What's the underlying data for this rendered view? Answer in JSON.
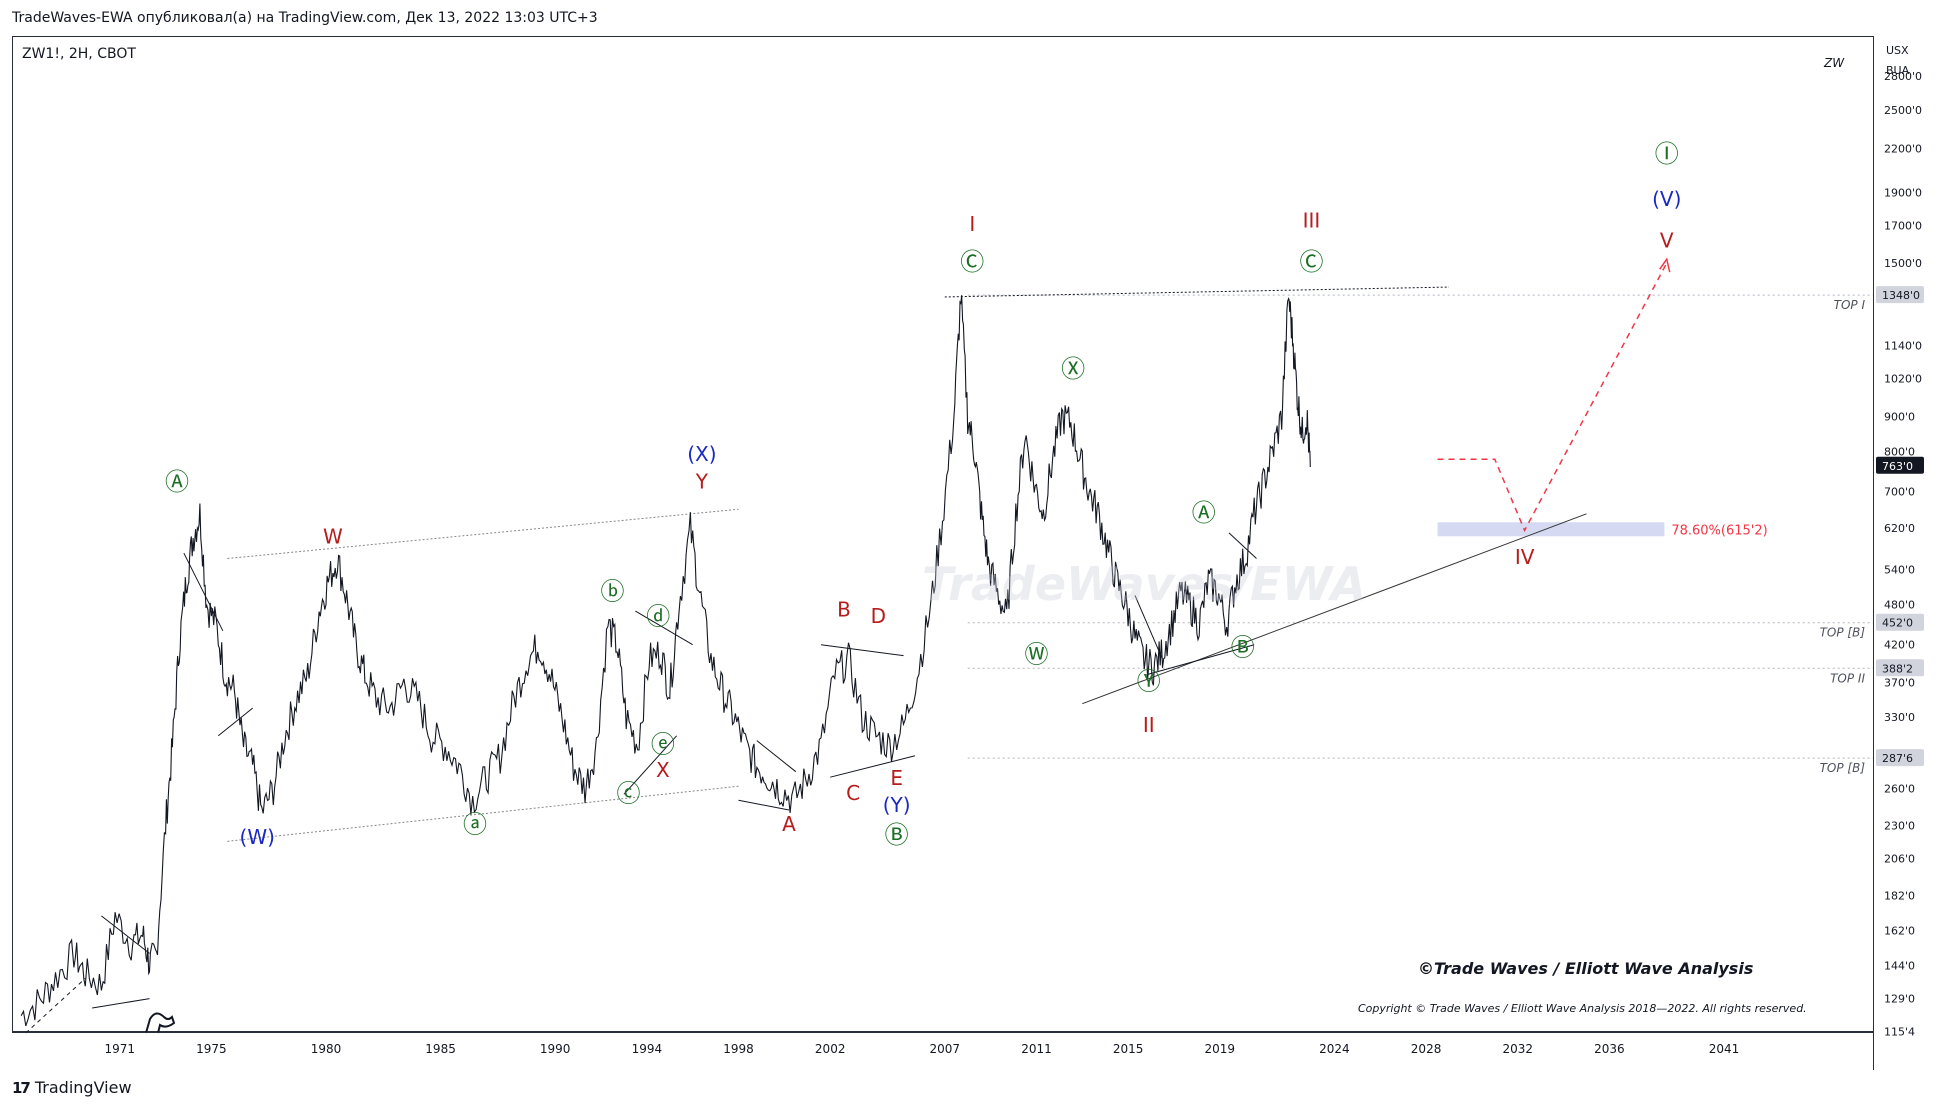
{
  "header": {
    "publish_line": "TradeWaves-EWA опубликовал(а) на TradingView.com, Дек 13, 2022 13:03 UTC+3"
  },
  "symbol": {
    "title": "ZW1!, 2H, CBOT",
    "watermark_code": "ZW",
    "currency_line1": "USX",
    "currency_line2": "BUA"
  },
  "footer": {
    "brand": "TradingView"
  },
  "chart_data": {
    "type": "line",
    "title": "ZW1!, 2H, CBOT",
    "y_scale": "log",
    "ylim": [
      115.4,
      3200
    ],
    "xlim": [
      1966.3,
      2047.5
    ],
    "x_ticks": [
      "1971",
      "1975",
      "1980",
      "1985",
      "1990",
      "1994",
      "1998",
      "2002",
      "2007",
      "2011",
      "2015",
      "2019",
      "2024",
      "2028",
      "2032",
      "2036",
      "2041"
    ],
    "y_ticks": [
      "2800'0",
      "2500'0",
      "2200'0",
      "1900'0",
      "1700'0",
      "1500'0",
      "1140'0",
      "1020'0",
      "900'0",
      "800'0",
      "700'0",
      "620'0",
      "540'0",
      "480'0",
      "420'0",
      "370'0",
      "330'0",
      "260'0",
      "230'0",
      "206'0",
      "182'0",
      "162'0",
      "144'0",
      "129'0",
      "115'4"
    ],
    "price_tags": [
      {
        "label": "1348'0",
        "value": 1348,
        "color": "#d1d4dc",
        "text_color": "#131722"
      },
      {
        "label": "763'0",
        "value": 763,
        "color": "#131722",
        "text_color": "#ffffff"
      },
      {
        "label": "452'0",
        "value": 452,
        "color": "#d1d4dc",
        "text_color": "#131722"
      },
      {
        "label": "388'2",
        "value": 388.25,
        "color": "#d1d4dc",
        "text_color": "#131722"
      },
      {
        "label": "287'6",
        "value": 287.75,
        "color": "#d1d4dc",
        "text_color": "#131722"
      }
    ],
    "horizontal_levels": [
      {
        "label": "TOP I",
        "value": 1348
      },
      {
        "label": "TOP [B]",
        "value": 452
      },
      {
        "label": "TOP II",
        "value": 388.25
      },
      {
        "label": "TOP [B]",
        "value": 287.75
      }
    ],
    "fib_zone": {
      "label": "78.60%(615'2)",
      "value": 615.25,
      "color": "#f23645"
    },
    "series": [
      {
        "name": "ZW1! price",
        "x": [
          1966.7,
          1967.5,
          1968.2,
          1969.0,
          1969.5,
          1970.2,
          1970.8,
          1971.5,
          1972.0,
          1972.3,
          1972.6,
          1973.0,
          1973.3,
          1973.6,
          1973.9,
          1974.2,
          1974.5,
          1974.8,
          1975.2,
          1975.6,
          1976.0,
          1976.4,
          1976.8,
          1977.2,
          1977.7,
          1978.2,
          1978.7,
          1979.2,
          1979.7,
          1980.1,
          1980.5,
          1980.9,
          1981.3,
          1981.7,
          1982.2,
          1982.8,
          1983.4,
          1984.0,
          1984.6,
          1985.2,
          1985.8,
          1986.4,
          1987.0,
          1987.6,
          1988.2,
          1988.8,
          1989.3,
          1989.8,
          1990.3,
          1990.8,
          1991.3,
          1991.8,
          1992.3,
          1992.7,
          1993.1,
          1993.6,
          1994.1,
          1994.6,
          1995.0,
          1995.4,
          1995.9,
          1996.3,
          1996.8,
          1997.3,
          1997.8,
          1998.3,
          1998.8,
          1999.3,
          1999.8,
          2000.4,
          2001.0,
          2001.6,
          2002.2,
          2002.8,
          2003.4,
          2004.0,
          2004.6,
          2005.2,
          2005.8,
          2006.4,
          2006.9,
          2007.4,
          2007.7,
          2008.0,
          2008.3,
          2008.6,
          2008.9,
          2009.3,
          2009.7,
          2010.1,
          2010.5,
          2010.9,
          2011.3,
          2011.7,
          2012.1,
          2012.5,
          2012.9,
          2013.3,
          2013.7,
          2014.1,
          2014.5,
          2014.9,
          2015.3,
          2015.7,
          2016.1,
          2016.5,
          2016.9,
          2017.3,
          2017.7,
          2018.1,
          2018.5,
          2018.9,
          2019.3,
          2019.7,
          2020.1,
          2020.5,
          2020.9,
          2021.3,
          2021.7,
          2022.0,
          2022.2,
          2022.4,
          2022.6,
          2022.8,
          2022.95
        ],
        "values": [
          122,
          128,
          138,
          150,
          140,
          135,
          170,
          155,
          160,
          145,
          150,
          230,
          300,
          420,
          520,
          600,
          650,
          480,
          450,
          380,
          360,
          300,
          280,
          240,
          260,
          310,
          350,
          380,
          470,
          520,
          560,
          490,
          420,
          380,
          350,
          340,
          370,
          350,
          310,
          300,
          280,
          250,
          270,
          290,
          350,
          400,
          420,
          380,
          330,
          280,
          260,
          300,
          450,
          420,
          330,
          300,
          400,
          410,
          360,
          480,
          620,
          500,
          400,
          360,
          330,
          300,
          280,
          270,
          260,
          250,
          270,
          300,
          380,
          400,
          330,
          310,
          300,
          320,
          380,
          480,
          640,
          900,
          1348,
          900,
          800,
          650,
          550,
          500,
          460,
          650,
          850,
          720,
          650,
          780,
          900,
          880,
          780,
          700,
          650,
          580,
          520,
          480,
          430,
          400,
          390,
          410,
          450,
          500,
          480,
          450,
          520,
          500,
          450,
          520,
          560,
          650,
          720,
          800,
          900,
          1348,
          1150,
          950,
          850,
          900,
          760
        ]
      },
      {
        "name": "Projection",
        "x": [
          2028.5,
          2031.0,
          2032.3,
          2038.5
        ],
        "values": [
          780,
          780,
          615,
          1500
        ]
      }
    ],
    "annotations": [
      {
        "text": "Ⓐ",
        "x": 1973.5,
        "value": 720,
        "color": "#1b6f24"
      },
      {
        "text": "W",
        "x": 1980.3,
        "value": 600,
        "color": "#b71c1c"
      },
      {
        "text": "(W)",
        "x": 1977.0,
        "value": 220,
        "color": "#1a28c4"
      },
      {
        "text": "ⓐ",
        "x": 1986.5,
        "value": 230,
        "color": "#1b6f24"
      },
      {
        "text": "ⓑ",
        "x": 1992.5,
        "value": 500,
        "color": "#1b6f24"
      },
      {
        "text": "ⓒ",
        "x": 1993.2,
        "value": 255,
        "color": "#1b6f24"
      },
      {
        "text": "ⓓ",
        "x": 1994.5,
        "value": 460,
        "color": "#1b6f24"
      },
      {
        "text": "ⓔ",
        "x": 1994.7,
        "value": 300,
        "color": "#1b6f24"
      },
      {
        "text": "X",
        "x": 1994.7,
        "value": 275,
        "color": "#b71c1c"
      },
      {
        "text": "(X)",
        "x": 1996.4,
        "value": 790,
        "color": "#1a28c4"
      },
      {
        "text": "Y",
        "x": 1996.4,
        "value": 720,
        "color": "#b71c1c"
      },
      {
        "text": "A",
        "x": 2000.2,
        "value": 230,
        "color": "#b71c1c"
      },
      {
        "text": "B",
        "x": 2002.6,
        "value": 470,
        "color": "#b71c1c"
      },
      {
        "text": "C",
        "x": 2003.0,
        "value": 255,
        "color": "#b71c1c"
      },
      {
        "text": "D",
        "x": 2004.1,
        "value": 460,
        "color": "#b71c1c"
      },
      {
        "text": "E",
        "x": 2004.9,
        "value": 268,
        "color": "#b71c1c"
      },
      {
        "text": "(Y)",
        "x": 2004.9,
        "value": 245,
        "color": "#1a28c4"
      },
      {
        "text": "Ⓑ",
        "x": 2004.9,
        "value": 222,
        "color": "#1b6f24"
      },
      {
        "text": "I",
        "x": 2008.2,
        "value": 1700,
        "color": "#b71c1c"
      },
      {
        "text": "Ⓒ",
        "x": 2008.2,
        "value": 1500,
        "color": "#1b6f24"
      },
      {
        "text": "Ⓧ",
        "x": 2012.6,
        "value": 1050,
        "color": "#1b6f24"
      },
      {
        "text": "Ⓦ",
        "x": 2011.0,
        "value": 405,
        "color": "#1b6f24"
      },
      {
        "text": "Ⓐ",
        "x": 2018.3,
        "value": 650,
        "color": "#1b6f24"
      },
      {
        "text": "Ⓑ",
        "x": 2020.0,
        "value": 415,
        "color": "#1b6f24"
      },
      {
        "text": "Ⓨ",
        "x": 2015.9,
        "value": 370,
        "color": "#1b6f24"
      },
      {
        "text": "II",
        "x": 2015.9,
        "value": 320,
        "color": "#b71c1c"
      },
      {
        "text": "III",
        "x": 2023.0,
        "value": 1720,
        "color": "#b71c1c"
      },
      {
        "text": "Ⓒ",
        "x": 2023.0,
        "value": 1500,
        "color": "#1b6f24"
      },
      {
        "text": "IV",
        "x": 2032.3,
        "value": 560,
        "color": "#b71c1c"
      },
      {
        "text": "Ⓘ",
        "x": 2038.5,
        "value": 2150,
        "color": "#1b6f24"
      },
      {
        "text": "(V)",
        "x": 2038.5,
        "value": 1850,
        "color": "#1a28c4"
      },
      {
        "text": "V",
        "x": 2038.5,
        "value": 1610,
        "color": "#b71c1c"
      }
    ],
    "watermark": "TradeWaves/EWA",
    "signature": "©Trade Waves / Elliott Wave Analysis",
    "copyright": "Copyright © Trade Waves / Elliott Wave Analysis 2018—2022. All rights reserved."
  }
}
